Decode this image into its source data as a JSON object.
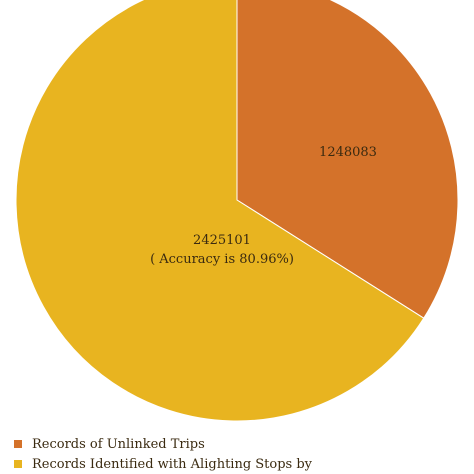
{
  "chart_data": {
    "type": "pie",
    "slices": [
      {
        "name": "Records of Unlinked Trips",
        "value": 1248083,
        "label": "1248083",
        "sublabel": "",
        "color": "#d4722a"
      },
      {
        "name": "Records Identified with Alighting Stops by",
        "value": 2425101,
        "label": "2425101",
        "sublabel": "( Accuracy is 80.96%)",
        "color": "#e8b420"
      }
    ],
    "legend": {
      "placement": "bottom-left",
      "items": [
        "Records of Unlinked Trips",
        "Records Identified with Alighting Stops by"
      ]
    }
  }
}
